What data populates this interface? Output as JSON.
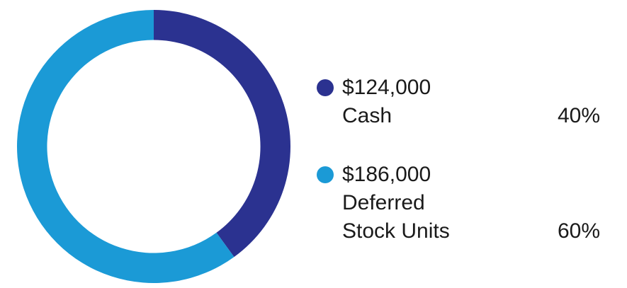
{
  "chart_data": {
    "type": "pie",
    "categories": [
      "Cash",
      "Deferred\nStock Units"
    ],
    "amounts": [
      "$124,000",
      "$186,000"
    ],
    "values": [
      124000,
      186000
    ],
    "percent_labels": [
      "40%",
      "60%"
    ],
    "colors": [
      "#2b3290",
      "#1b9ad6"
    ],
    "inner_radius_ratio": 0.78,
    "start": "12 o'clock",
    "direction": "clockwise",
    "legend": "right"
  }
}
